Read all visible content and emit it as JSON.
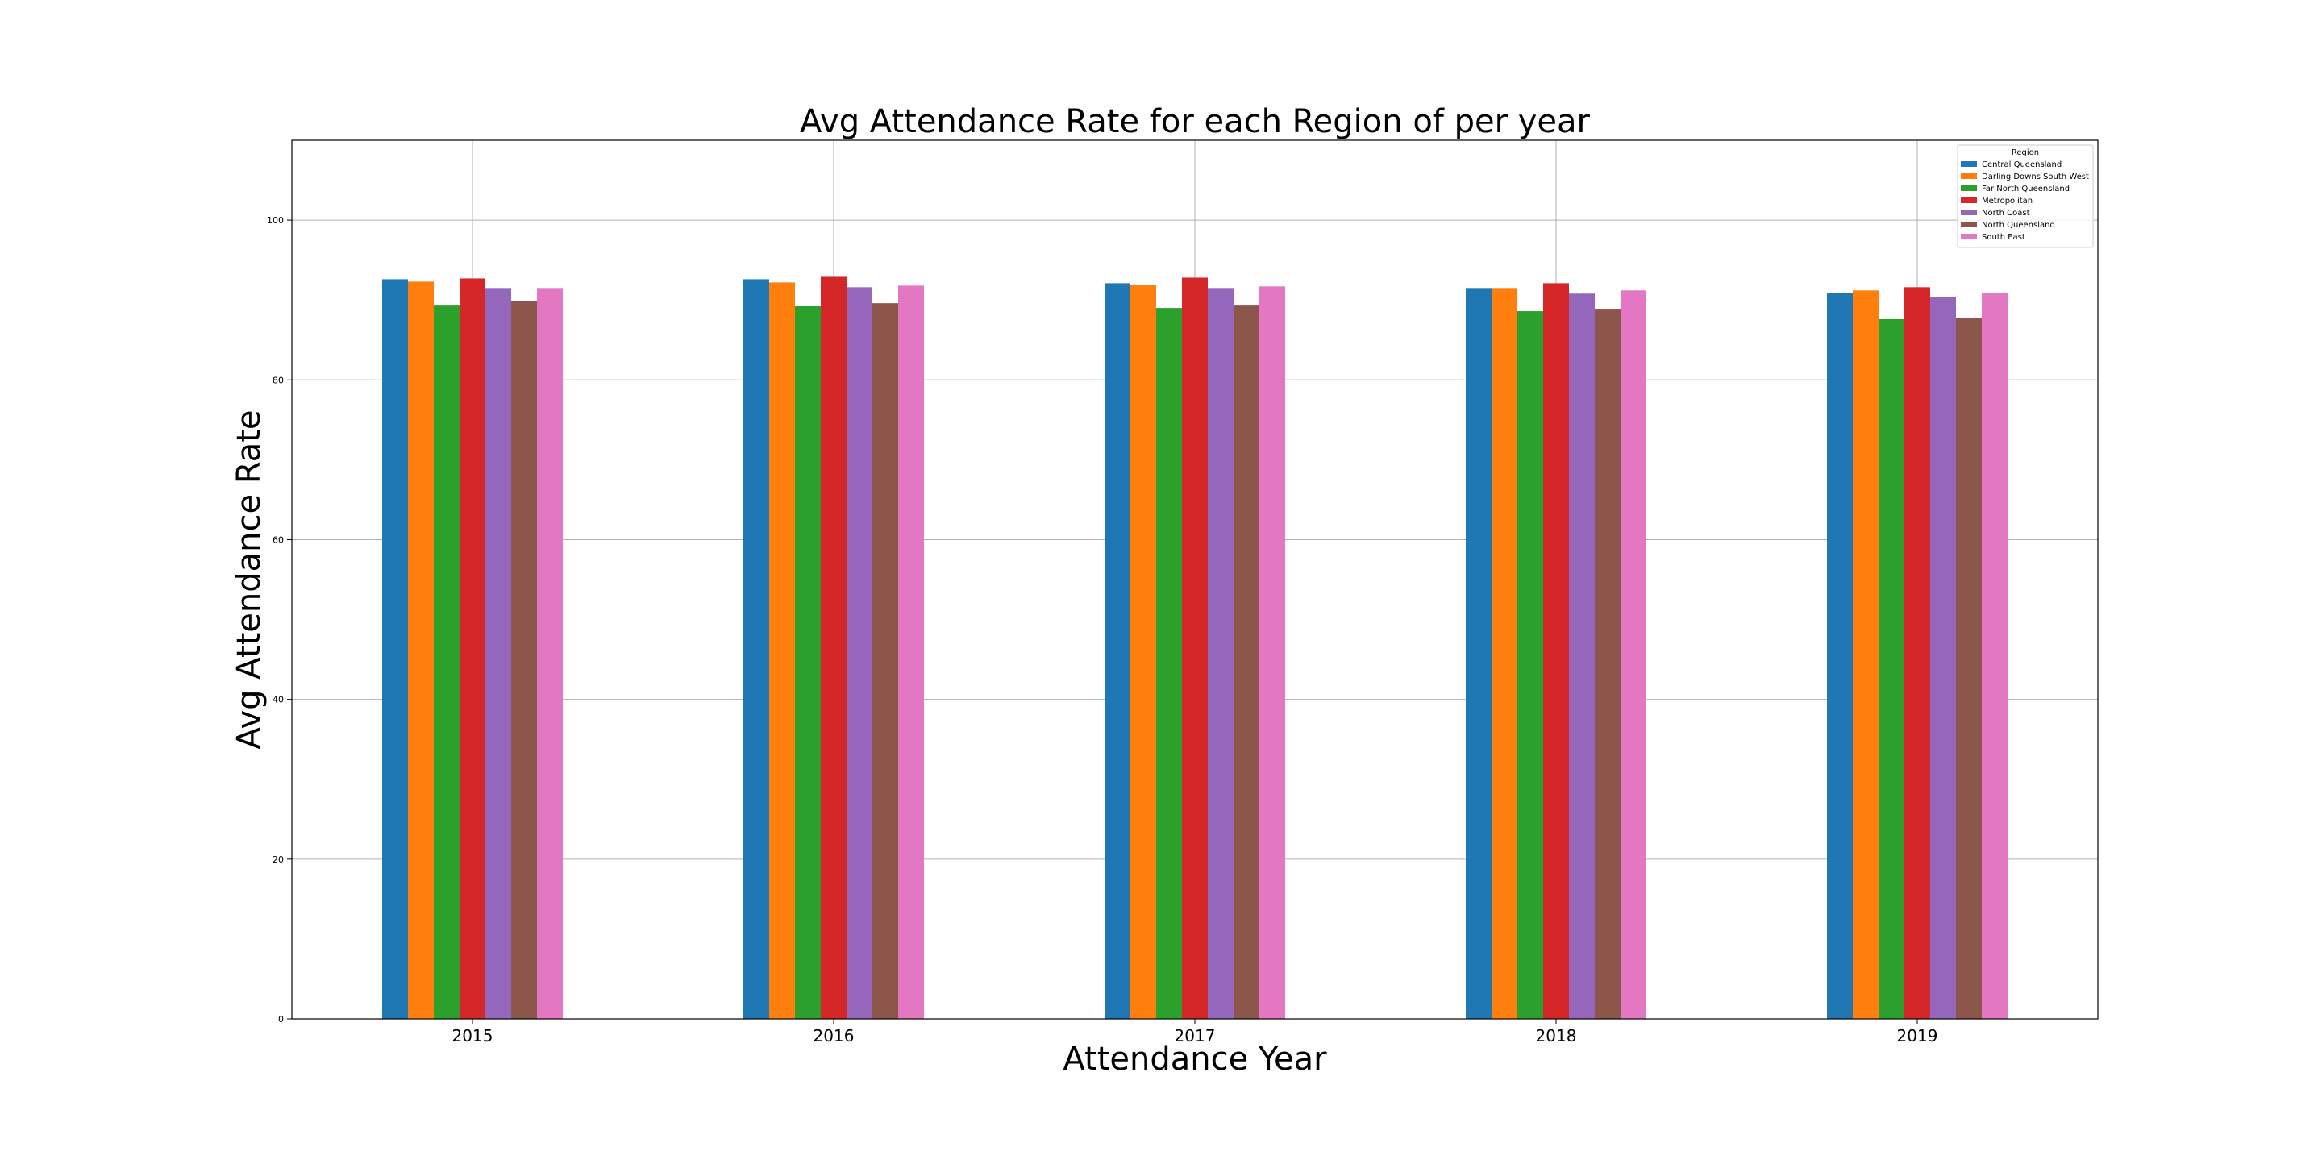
{
  "chart_data": {
    "type": "bar",
    "title": "Avg Attendance Rate for each Region of per year",
    "xlabel": "Attendance Year",
    "ylabel": "Avg Attendance Rate",
    "ylim": [
      0,
      110
    ],
    "yticks": [
      "0",
      "20",
      "40",
      "60",
      "80",
      "100"
    ],
    "grid": true,
    "legend": {
      "title": "Region",
      "placement": "top-right"
    },
    "categories": [
      "2015",
      "2016",
      "2017",
      "2018",
      "2019"
    ],
    "series": [
      {
        "name": "Central Queensland",
        "color": "#1f77b4",
        "values": [
          92.6,
          92.6,
          92.1,
          91.5,
          90.9
        ]
      },
      {
        "name": "Darling Downs South West",
        "color": "#ff7f0e",
        "values": [
          92.3,
          92.2,
          91.9,
          91.5,
          91.2
        ]
      },
      {
        "name": "Far North Queensland",
        "color": "#2ca02c",
        "values": [
          89.4,
          89.3,
          89.0,
          88.6,
          87.6
        ]
      },
      {
        "name": "Metropolitan",
        "color": "#d62728",
        "values": [
          92.7,
          92.9,
          92.8,
          92.1,
          91.6
        ]
      },
      {
        "name": "North Coast",
        "color": "#9467bd",
        "values": [
          91.5,
          91.6,
          91.5,
          90.8,
          90.4
        ]
      },
      {
        "name": "North Queensland",
        "color": "#8c564b",
        "values": [
          89.9,
          89.6,
          89.4,
          88.9,
          87.8
        ]
      },
      {
        "name": "South East",
        "color": "#e377c2",
        "values": [
          91.5,
          91.8,
          91.7,
          91.2,
          90.9
        ]
      }
    ]
  }
}
